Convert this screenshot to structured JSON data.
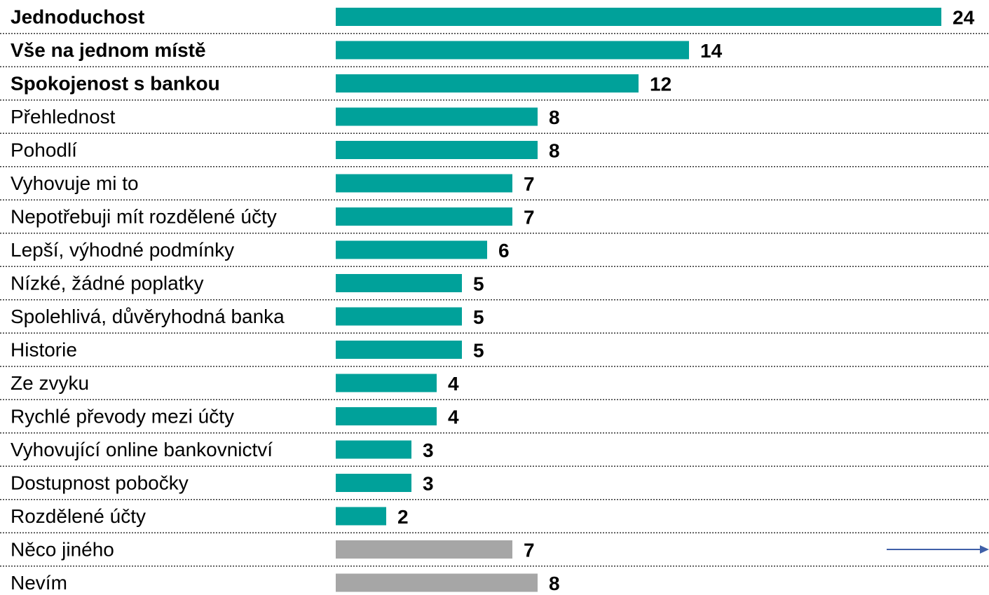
{
  "chart_data": {
    "type": "bar",
    "orientation": "horizontal",
    "categories": [
      "Jednoduchost",
      "Vše na jednom místě",
      "Spokojenost s bankou",
      "Přehlednost",
      "Pohodlí",
      "Vyhovuje mi to",
      "Nepotřebuji mít rozdělené účty",
      "Lepší, výhodné podmínky",
      "Nízké, žádné poplatky",
      "Spolehlivá, důvěryhodná banka",
      "Historie",
      "Ze zvyku",
      "Rychlé převody mezi účty",
      "Vyhovující online bankovnictví",
      "Dostupnost pobočky",
      "Rozdělené účty",
      "Něco jiného",
      "Nevím"
    ],
    "values": [
      24,
      14,
      12,
      8,
      8,
      7,
      7,
      6,
      5,
      5,
      5,
      4,
      4,
      3,
      3,
      2,
      7,
      8
    ],
    "colors": [
      "#00a19a",
      "#00a19a",
      "#00a19a",
      "#00a19a",
      "#00a19a",
      "#00a19a",
      "#00a19a",
      "#00a19a",
      "#00a19a",
      "#00a19a",
      "#00a19a",
      "#00a19a",
      "#00a19a",
      "#00a19a",
      "#00a19a",
      "#00a19a",
      "#a6a6a6",
      "#a6a6a6"
    ],
    "bold_labels": [
      true,
      true,
      true,
      false,
      false,
      false,
      false,
      false,
      false,
      false,
      false,
      false,
      false,
      false,
      false,
      false,
      false,
      false
    ]
  }
}
